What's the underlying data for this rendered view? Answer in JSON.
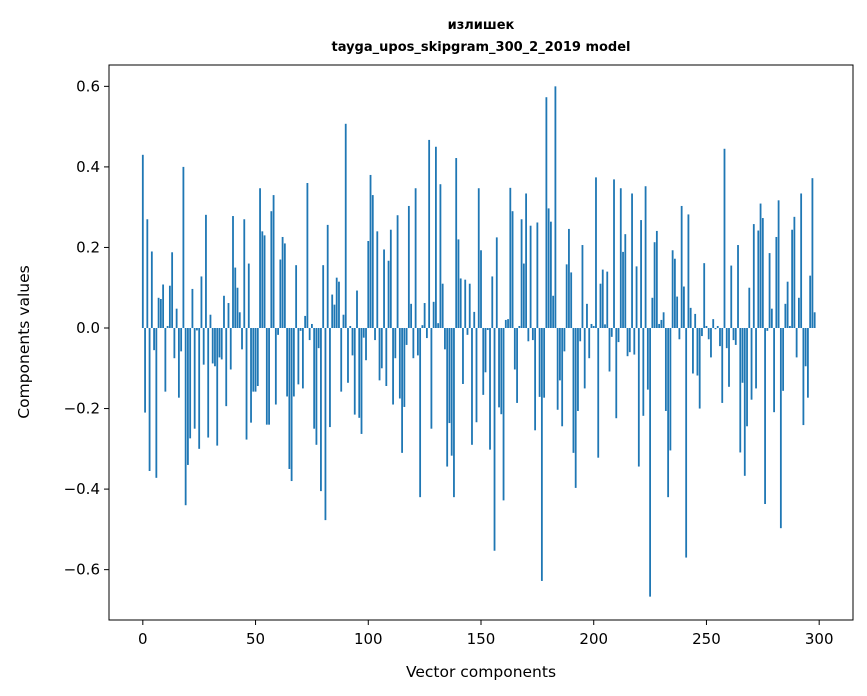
{
  "chart_data": {
    "type": "bar",
    "title": [
      "излишек",
      "tayga_upos_skipgram_300_2_2019 model"
    ],
    "xlabel": "Vector components",
    "ylabel": "Components values",
    "xlim": [
      -15,
      315
    ],
    "ylim": [
      -0.725,
      0.653
    ],
    "xticks": [
      0,
      50,
      100,
      150,
      200,
      250,
      300
    ],
    "xtick_labels": [
      "0",
      "50",
      "100",
      "150",
      "200",
      "250",
      "300"
    ],
    "yticks": [
      -0.6,
      -0.4,
      -0.2,
      0.0,
      0.2,
      0.4,
      0.6
    ],
    "ytick_labels": [
      "−0.6",
      "−0.4",
      "−0.2",
      "0.0",
      "0.2",
      "0.4",
      "0.6"
    ],
    "grid": false,
    "bar_color": "#1f77b4",
    "values": [
      0.43,
      -0.21,
      0.27,
      -0.355,
      0.19,
      -0.055,
      -0.372,
      0.075,
      0.072,
      0.108,
      -0.158,
      0.005,
      0.105,
      0.188,
      -0.075,
      0.048,
      -0.173,
      -0.058,
      0.4,
      -0.44,
      -0.34,
      -0.274,
      0.097,
      -0.25,
      -0.006,
      -0.3,
      0.128,
      -0.091,
      0.281,
      -0.272,
      0.033,
      -0.088,
      -0.095,
      -0.292,
      -0.073,
      -0.078,
      0.08,
      -0.194,
      0.062,
      -0.103,
      0.278,
      0.15,
      0.1,
      0.039,
      -0.053,
      0.27,
      -0.277,
      0.16,
      -0.235,
      -0.158,
      -0.158,
      -0.144,
      0.347,
      0.24,
      0.23,
      -0.24,
      -0.24,
      0.29,
      0.33,
      -0.19,
      -0.017,
      0.17,
      0.226,
      0.21,
      -0.17,
      -0.35,
      -0.38,
      -0.17,
      0.156,
      -0.14,
      -0.007,
      -0.15,
      0.03,
      0.36,
      -0.03,
      0.01,
      -0.25,
      -0.29,
      -0.05,
      -0.405,
      0.156,
      -0.477,
      0.256,
      -0.246,
      0.083,
      0.058,
      0.125,
      0.115,
      -0.158,
      0.033,
      0.507,
      -0.136,
      0.005,
      -0.068,
      -0.215,
      0.093,
      -0.223,
      -0.263,
      -0.024,
      -0.08,
      0.216,
      0.38,
      0.33,
      -0.03,
      0.24,
      -0.13,
      -0.1,
      0.195,
      -0.144,
      0.167,
      0.244,
      -0.19,
      -0.075,
      0.28,
      -0.175,
      -0.31,
      -0.196,
      -0.042,
      0.303,
      0.06,
      -0.075,
      0.347,
      -0.068,
      -0.42,
      0.007,
      0.062,
      -0.025,
      0.467,
      -0.25,
      0.065,
      0.45,
      0.012,
      0.357,
      0.11,
      -0.053,
      -0.344,
      -0.236,
      -0.317,
      -0.42,
      0.422,
      0.22,
      0.123,
      -0.139,
      0.12,
      -0.017,
      0.11,
      -0.29,
      0.04,
      -0.234,
      0.347,
      0.193,
      -0.166,
      -0.11,
      -0.005,
      -0.302,
      0.128,
      -0.553,
      0.225,
      -0.197,
      -0.214,
      -0.428,
      0.02,
      0.022,
      0.348,
      0.29,
      -0.103,
      -0.186,
      0.005,
      0.27,
      0.16,
      0.334,
      -0.033,
      0.254,
      -0.03,
      -0.254,
      0.262,
      -0.171,
      -0.628,
      -0.173,
      0.573,
      0.297,
      0.264,
      0.08,
      0.6,
      -0.203,
      -0.13,
      -0.244,
      -0.058,
      0.158,
      0.246,
      0.138,
      -0.31,
      -0.397,
      -0.206,
      -0.033,
      0.206,
      -0.15,
      0.06,
      -0.075,
      0.01,
      0.005,
      0.374,
      -0.322,
      0.11,
      0.145,
      0.009,
      0.14,
      -0.108,
      -0.022,
      0.369,
      -0.224,
      -0.035,
      0.347,
      0.189,
      0.233,
      -0.07,
      -0.06,
      0.334,
      -0.066,
      0.153,
      -0.344,
      0.268,
      -0.218,
      0.352,
      -0.153,
      -0.667,
      0.075,
      0.213,
      0.241,
      0.01,
      0.02,
      0.039,
      -0.206,
      -0.42,
      -0.304,
      0.193,
      0.172,
      0.078,
      -0.028,
      0.303,
      0.103,
      -0.57,
      0.282,
      0.05,
      -0.113,
      0.035,
      -0.118,
      -0.2,
      -0.02,
      0.161,
      0.005,
      -0.028,
      -0.073,
      0.022,
      -0.003,
      0.005,
      -0.045,
      -0.186,
      0.445,
      -0.05,
      -0.146,
      0.155,
      -0.03,
      -0.042,
      0.206,
      -0.309,
      -0.136,
      -0.367,
      -0.244,
      0.1,
      -0.178,
      0.258,
      -0.15,
      0.242,
      0.309,
      0.273,
      -0.437,
      -0.007,
      0.186,
      0.048,
      -0.209,
      0.226,
      0.317,
      -0.497,
      -0.156,
      0.06,
      0.115,
      0.005,
      0.244,
      0.276,
      -0.073,
      0.075,
      0.334,
      -0.241,
      -0.095,
      -0.173,
      0.13,
      0.372,
      0.039
    ]
  }
}
